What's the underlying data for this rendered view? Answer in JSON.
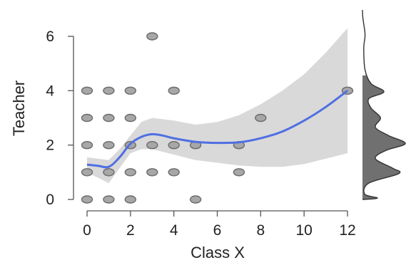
{
  "chart_data": {
    "type": "scatter",
    "xlabel": "Class X",
    "ylabel": "Teacher",
    "xlim": [
      0,
      12
    ],
    "ylim": [
      0,
      6
    ],
    "x_ticks": [
      "0",
      "2",
      "4",
      "6",
      "8",
      "10",
      "12"
    ],
    "y_ticks": [
      "0",
      "2",
      "4",
      "6"
    ],
    "grid": false,
    "legend": "none",
    "colors": {
      "points_fill": "#a7a7a7",
      "points_stroke": "#6b6b6b",
      "smooth_line": "#4f6fe3",
      "confidence_band": "#d9d9d9",
      "marginal_density_fill": "#707070"
    },
    "points": [
      {
        "x": 0,
        "y": 0
      },
      {
        "x": 1,
        "y": 0
      },
      {
        "x": 2,
        "y": 0
      },
      {
        "x": 5,
        "y": 0
      },
      {
        "x": 0,
        "y": 1
      },
      {
        "x": 1,
        "y": 1
      },
      {
        "x": 2,
        "y": 1
      },
      {
        "x": 3,
        "y": 1
      },
      {
        "x": 4,
        "y": 1
      },
      {
        "x": 7,
        "y": 1
      },
      {
        "x": 0,
        "y": 2
      },
      {
        "x": 1,
        "y": 2
      },
      {
        "x": 2,
        "y": 2
      },
      {
        "x": 3,
        "y": 2
      },
      {
        "x": 4,
        "y": 2
      },
      {
        "x": 5,
        "y": 2
      },
      {
        "x": 7,
        "y": 2
      },
      {
        "x": 0,
        "y": 3
      },
      {
        "x": 1,
        "y": 3
      },
      {
        "x": 2,
        "y": 3
      },
      {
        "x": 8,
        "y": 3
      },
      {
        "x": 0,
        "y": 4
      },
      {
        "x": 1,
        "y": 4
      },
      {
        "x": 2,
        "y": 4
      },
      {
        "x": 4,
        "y": 4
      },
      {
        "x": 12,
        "y": 4
      },
      {
        "x": 3,
        "y": 6
      }
    ],
    "smooth_fit": [
      {
        "x": 0,
        "y": 1.28
      },
      {
        "x": 0.5,
        "y": 1.24
      },
      {
        "x": 1,
        "y": 1.2
      },
      {
        "x": 1.5,
        "y": 1.55
      },
      {
        "x": 2,
        "y": 2.05
      },
      {
        "x": 2.5,
        "y": 2.3
      },
      {
        "x": 3,
        "y": 2.4
      },
      {
        "x": 3.5,
        "y": 2.35
      },
      {
        "x": 4,
        "y": 2.25
      },
      {
        "x": 5,
        "y": 2.12
      },
      {
        "x": 6,
        "y": 2.08
      },
      {
        "x": 7,
        "y": 2.1
      },
      {
        "x": 8,
        "y": 2.25
      },
      {
        "x": 9,
        "y": 2.5
      },
      {
        "x": 10,
        "y": 2.9
      },
      {
        "x": 11,
        "y": 3.4
      },
      {
        "x": 12,
        "y": 4.0
      }
    ],
    "band_upper": [
      {
        "x": 0,
        "y": 1.55
      },
      {
        "x": 1,
        "y": 1.45
      },
      {
        "x": 1.5,
        "y": 1.85
      },
      {
        "x": 2,
        "y": 2.35
      },
      {
        "x": 2.5,
        "y": 2.85
      },
      {
        "x": 3,
        "y": 3.0
      },
      {
        "x": 4,
        "y": 2.9
      },
      {
        "x": 5,
        "y": 2.75
      },
      {
        "x": 6,
        "y": 2.85
      },
      {
        "x": 7,
        "y": 3.1
      },
      {
        "x": 8,
        "y": 3.5
      },
      {
        "x": 9,
        "y": 4.0
      },
      {
        "x": 10,
        "y": 4.6
      },
      {
        "x": 11,
        "y": 5.4
      },
      {
        "x": 12,
        "y": 6.3
      }
    ],
    "band_lower": [
      {
        "x": 0,
        "y": 1.0
      },
      {
        "x": 1,
        "y": 0.6
      },
      {
        "x": 1.5,
        "y": 1.15
      },
      {
        "x": 2,
        "y": 1.7
      },
      {
        "x": 2.5,
        "y": 1.85
      },
      {
        "x": 3,
        "y": 1.85
      },
      {
        "x": 4,
        "y": 1.65
      },
      {
        "x": 5,
        "y": 1.45
      },
      {
        "x": 6,
        "y": 1.35
      },
      {
        "x": 7,
        "y": 1.25
      },
      {
        "x": 8,
        "y": 1.2
      },
      {
        "x": 9,
        "y": 1.2
      },
      {
        "x": 10,
        "y": 1.3
      },
      {
        "x": 11,
        "y": 1.5
      },
      {
        "x": 12,
        "y": 1.7
      }
    ],
    "marginal_density_y": [
      {
        "y": -0.05,
        "d": 0.0
      },
      {
        "y": 0.0,
        "d": 0.35
      },
      {
        "y": 0.15,
        "d": 0.05
      },
      {
        "y": 0.55,
        "d": 0.15
      },
      {
        "y": 0.9,
        "d": 0.85
      },
      {
        "y": 1.1,
        "d": 0.7
      },
      {
        "y": 1.45,
        "d": 0.3
      },
      {
        "y": 1.75,
        "d": 0.55
      },
      {
        "y": 2.0,
        "d": 1.0
      },
      {
        "y": 2.3,
        "d": 0.6
      },
      {
        "y": 2.6,
        "d": 0.3
      },
      {
        "y": 2.95,
        "d": 0.42
      },
      {
        "y": 3.3,
        "d": 0.2
      },
      {
        "y": 3.65,
        "d": 0.15
      },
      {
        "y": 3.9,
        "d": 0.5
      },
      {
        "y": 4.2,
        "d": 0.2
      },
      {
        "y": 4.7,
        "d": 0.06
      },
      {
        "y": 5.5,
        "d": 0.03
      },
      {
        "y": 6.0,
        "d": 0.06
      },
      {
        "y": 6.6,
        "d": 0.01
      },
      {
        "y": 6.9,
        "d": 0.0
      }
    ]
  }
}
